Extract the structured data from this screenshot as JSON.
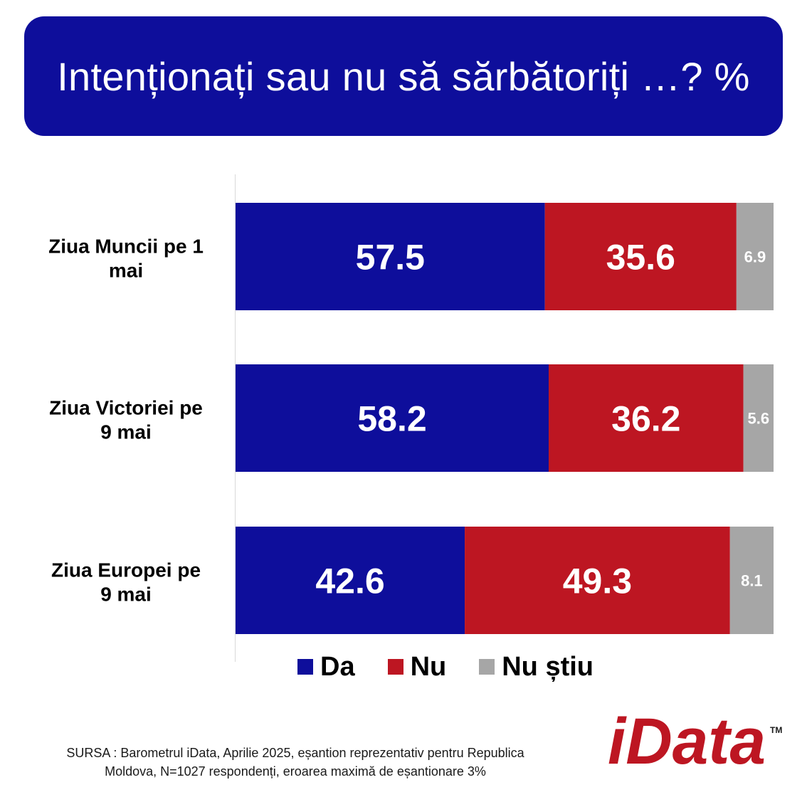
{
  "title": "Intenționați sau nu să sărbătoriți …? %",
  "chart_data": {
    "type": "bar",
    "orientation": "horizontal",
    "stacked": true,
    "categories": [
      "Ziua Muncii pe 1 mai",
      "Ziua Victoriei pe 9 mai",
      "Ziua Europei pe 9 mai"
    ],
    "category_lines": [
      [
        "Ziua Muncii pe 1",
        "mai"
      ],
      [
        "Ziua Victoriei pe",
        "9 mai"
      ],
      [
        "Ziua Europei pe",
        "9 mai"
      ]
    ],
    "series": [
      {
        "name": "Da",
        "color": "#0e0e9b",
        "values": [
          57.5,
          58.2,
          42.6
        ],
        "labels": [
          "57.5",
          "58.2",
          "42.6"
        ]
      },
      {
        "name": "Nu",
        "color": "#bd1622",
        "values": [
          35.6,
          36.2,
          49.3
        ],
        "labels": [
          "35.6",
          "36.2",
          "49.3"
        ]
      },
      {
        "name": "Nu știu",
        "color": "#a6a6a6",
        "values": [
          6.9,
          5.6,
          8.1
        ],
        "labels": [
          "6.9",
          "5.6",
          "8.1"
        ]
      }
    ],
    "xlim": [
      0,
      100
    ],
    "grid": false,
    "legend_position": "bottom"
  },
  "source": {
    "line1": "SURSA : Barometrul iData, Aprilie 2025, eșantion reprezentativ pentru Republica",
    "line2": "Moldova, N=1027 respondenți, eroarea maximă de eșantionare 3%"
  },
  "logo": {
    "text": "iData",
    "trademark": "TM",
    "color": "#bd1622"
  }
}
